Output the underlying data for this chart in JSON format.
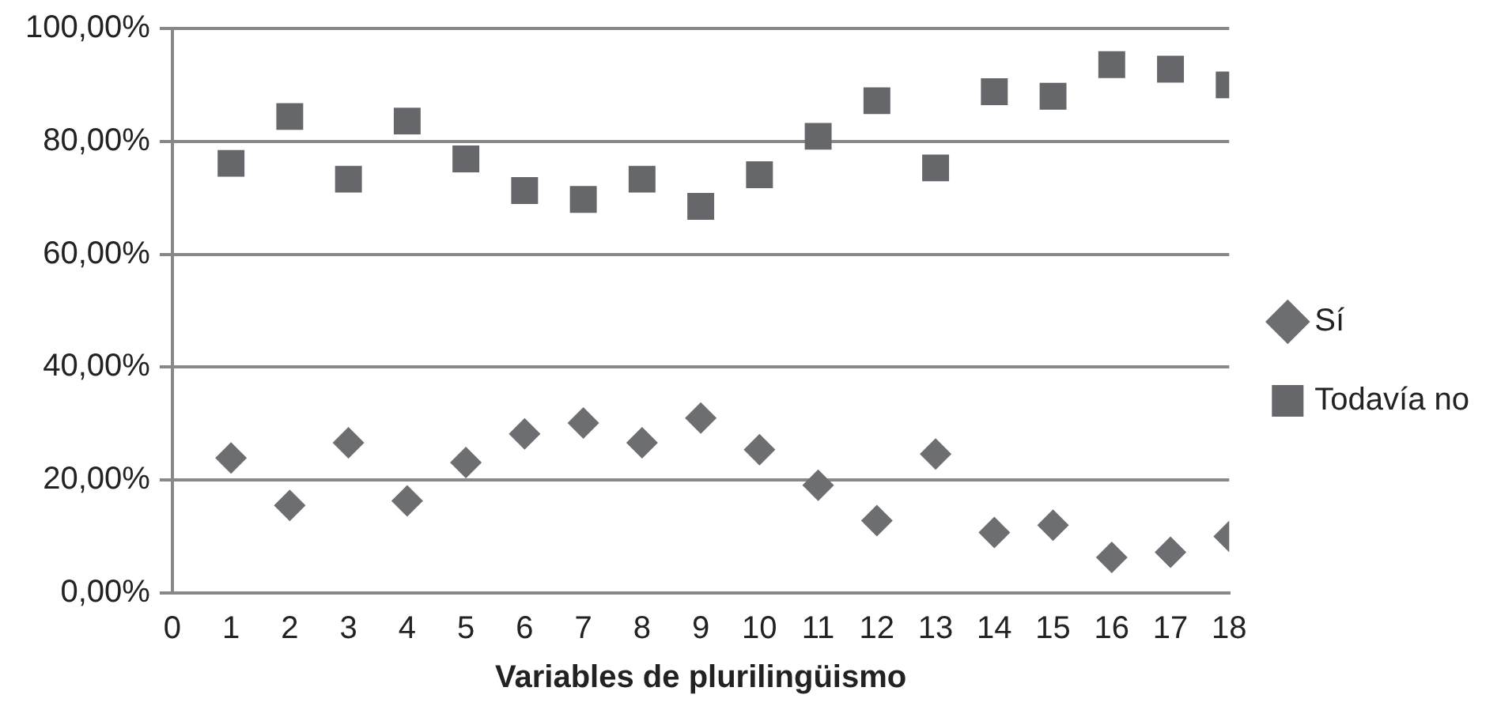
{
  "chart_data": {
    "type": "scatter",
    "xlabel": "Variables de plurilingüismo",
    "x": [
      1,
      2,
      3,
      4,
      5,
      6,
      7,
      8,
      9,
      10,
      11,
      12,
      13,
      14,
      15,
      16,
      17,
      18
    ],
    "series": [
      {
        "name": "Sí",
        "color": "#6d6e71",
        "marker": "diamond",
        "values": [
          23.9,
          15.5,
          26.6,
          16.3,
          23.1,
          28.2,
          30.1,
          26.6,
          31.0,
          25.4,
          19.1,
          12.8,
          24.6,
          10.7,
          12.0,
          6.3,
          7.2,
          10.0
        ]
      },
      {
        "name": "Todavía no",
        "color": "#66676a",
        "marker": "square",
        "values": [
          76.1,
          84.4,
          73.3,
          83.6,
          76.9,
          71.3,
          69.7,
          73.3,
          68.5,
          74.1,
          80.9,
          87.2,
          75.3,
          88.8,
          88.0,
          93.6,
          92.8,
          90.0
        ]
      }
    ],
    "xlim": [
      0,
      18
    ],
    "xticks": [
      0,
      1,
      2,
      3,
      4,
      5,
      6,
      7,
      8,
      9,
      10,
      11,
      12,
      13,
      14,
      15,
      16,
      17,
      18
    ],
    "ylim": [
      0,
      100
    ],
    "yticks": [
      {
        "value": 0,
        "label": "0,00%"
      },
      {
        "value": 20,
        "label": "20,00%"
      },
      {
        "value": 40,
        "label": "40,00%"
      },
      {
        "value": 60,
        "label": "60,00%"
      },
      {
        "value": 80,
        "label": "80,00%"
      },
      {
        "value": 100,
        "label": "100,00%"
      }
    ],
    "grid": "y",
    "legend": "right"
  }
}
